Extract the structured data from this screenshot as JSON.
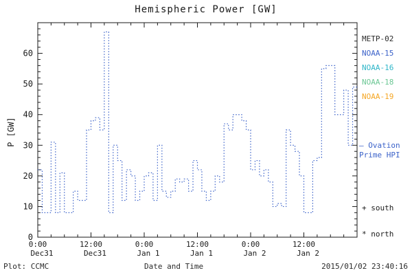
{
  "header": {
    "title": "Hemispheric Power [GW]"
  },
  "footer": {
    "plot_credit": "Plot: CCMC",
    "axis_caption": "Date and Time",
    "timestamp": "2015/01/02 23:40:16"
  },
  "legend": {
    "satellites": [
      {
        "label": "METP-02",
        "color": "#2a2a2a"
      },
      {
        "label": "NOAA-15",
        "color": "#3b62c9"
      },
      {
        "label": "NOAA-16",
        "color": "#2fb6c9"
      },
      {
        "label": "NOAA-18",
        "color": "#6cc794"
      },
      {
        "label": "NOAA-19",
        "color": "#f5a623"
      }
    ],
    "series_note": {
      "line1": "— Ovation",
      "line2": "Prime HPI",
      "color": "#3b62c9"
    },
    "marker_south": "+ south",
    "marker_north": "* north"
  },
  "chart_data": {
    "type": "line",
    "style": "dotted-step",
    "title": "Hemispheric Power [GW]",
    "xlabel": "Date and Time",
    "ylabel": "P [GW]",
    "ylim": [
      0,
      70
    ],
    "xlim_hours": [
      0,
      72
    ],
    "grid": false,
    "legend_position": "right",
    "line_color": "#3b62c9",
    "yticks": [
      0,
      10,
      20,
      30,
      40,
      50,
      60
    ],
    "xticks": [
      {
        "hour": 0,
        "time": "0:00",
        "date": "Dec31"
      },
      {
        "hour": 12,
        "time": "12:00",
        "date": "Dec31"
      },
      {
        "hour": 24,
        "time": "0:00",
        "date": "Jan 1"
      },
      {
        "hour": 36,
        "time": "12:00",
        "date": "Jan 1"
      },
      {
        "hour": 48,
        "time": "0:00",
        "date": "Jan 2"
      },
      {
        "hour": 60,
        "time": "12:00",
        "date": "Jan 2"
      }
    ],
    "x_hours": [
      0,
      1,
      2,
      3,
      4,
      5,
      6,
      7,
      8,
      9,
      10,
      11,
      12,
      13,
      14,
      15,
      16,
      17,
      18,
      19,
      20,
      21,
      22,
      23,
      24,
      25,
      26,
      27,
      28,
      29,
      30,
      31,
      32,
      33,
      34,
      35,
      36,
      37,
      38,
      39,
      40,
      41,
      42,
      43,
      44,
      45,
      46,
      47,
      48,
      49,
      50,
      51,
      52,
      53,
      54,
      55,
      56,
      57,
      58,
      59,
      60,
      61,
      62,
      63,
      64,
      65,
      66,
      67,
      68,
      69,
      70,
      71
    ],
    "values": [
      22,
      8,
      8,
      31,
      8,
      21,
      8,
      8,
      15,
      12,
      12,
      35,
      38,
      39,
      35,
      67,
      8,
      30,
      25,
      12,
      22,
      20,
      12,
      15,
      20,
      21,
      12,
      30,
      15,
      13,
      15,
      19,
      18,
      19,
      15,
      25,
      22,
      15,
      12,
      15,
      20,
      18,
      37,
      35,
      40,
      40,
      38,
      35,
      22,
      25,
      20,
      22,
      18,
      10,
      11,
      10,
      35,
      30,
      28,
      20,
      8,
      8,
      25,
      26,
      55,
      56,
      56,
      40,
      40,
      48,
      30,
      49
    ]
  }
}
